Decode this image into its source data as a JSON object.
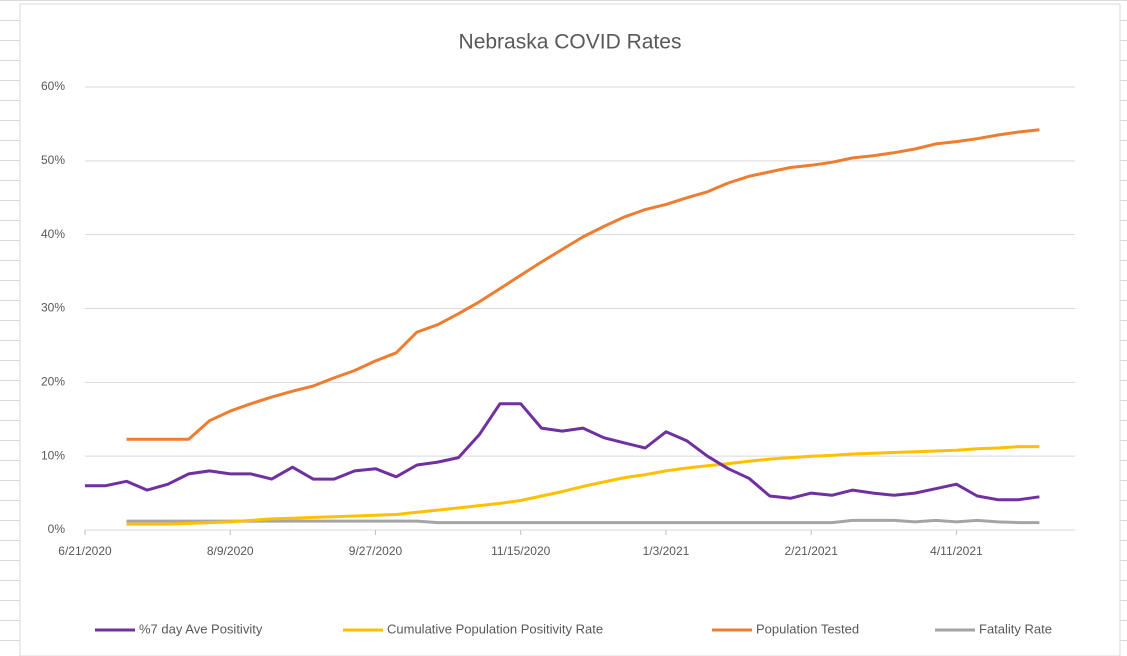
{
  "chart_data": {
    "type": "line",
    "title": "Nebraska COVID Rates",
    "x": [
      "6/21/2020",
      "6/28/2020",
      "7/5/2020",
      "7/12/2020",
      "7/19/2020",
      "7/26/2020",
      "8/2/2020",
      "8/9/2020",
      "8/16/2020",
      "8/23/2020",
      "8/30/2020",
      "9/6/2020",
      "9/13/2020",
      "9/20/2020",
      "9/27/2020",
      "10/4/2020",
      "10/11/2020",
      "10/18/2020",
      "10/25/2020",
      "11/1/2020",
      "11/8/2020",
      "11/15/2020",
      "11/22/2020",
      "11/29/2020",
      "12/6/2020",
      "12/13/2020",
      "12/20/2020",
      "12/27/2020",
      "1/3/2021",
      "1/10/2021",
      "1/17/2021",
      "1/24/2021",
      "1/31/2021",
      "2/7/2021",
      "2/14/2021",
      "2/21/2021",
      "2/28/2021",
      "3/7/2021",
      "3/14/2021",
      "3/21/2021",
      "3/28/2021",
      "4/4/2021",
      "4/11/2021",
      "4/18/2021",
      "4/25/2021",
      "5/2/2021",
      "5/9/2021"
    ],
    "series": [
      {
        "name": "%7 day Ave Positivity",
        "color": "#7030a0",
        "values": [
          6.0,
          6.0,
          6.6,
          5.4,
          6.2,
          7.6,
          8.0,
          7.6,
          7.6,
          6.9,
          8.5,
          6.9,
          6.9,
          8.0,
          8.3,
          7.2,
          8.8,
          9.2,
          9.8,
          12.9,
          17.1,
          17.1,
          13.8,
          13.4,
          13.8,
          12.5,
          11.8,
          11.1,
          13.3,
          12.1,
          10.0,
          8.3,
          7.0,
          4.6,
          4.3,
          5.0,
          4.7,
          5.4,
          5.0,
          4.7,
          5.0,
          5.6,
          6.2,
          4.6,
          4.1,
          4.1,
          4.5
        ]
      },
      {
        "name": "Cumulative Population Positivity Rate",
        "color": "#ffc000",
        "values": [
          null,
          null,
          0.8,
          0.8,
          0.8,
          0.9,
          1.0,
          1.1,
          1.3,
          1.5,
          1.6,
          1.7,
          1.8,
          1.9,
          2.0,
          2.1,
          2.4,
          2.7,
          3.0,
          3.3,
          3.6,
          4.0,
          4.6,
          5.2,
          5.9,
          6.5,
          7.1,
          7.5,
          8.0,
          8.4,
          8.7,
          9.0,
          9.3,
          9.6,
          9.8,
          10.0,
          10.1,
          10.3,
          10.4,
          10.5,
          10.6,
          10.7,
          10.8,
          11.0,
          11.1,
          11.3,
          11.3
        ]
      },
      {
        "name": "Population Tested",
        "color": "#ed7d31",
        "values": [
          null,
          null,
          12.3,
          12.3,
          12.3,
          12.3,
          14.8,
          16.1,
          17.1,
          18.0,
          18.8,
          19.5,
          20.6,
          21.6,
          22.9,
          24.0,
          26.8,
          27.8,
          29.3,
          30.9,
          32.7,
          34.5,
          36.3,
          38.0,
          39.7,
          41.1,
          42.4,
          43.4,
          44.1,
          45.0,
          45.8,
          47.0,
          47.9,
          48.5,
          49.1,
          49.4,
          49.8,
          50.4,
          50.7,
          51.1,
          51.6,
          52.3,
          52.6,
          53.0,
          53.5,
          53.9,
          54.2
        ]
      },
      {
        "name": "Fatality Rate",
        "color": "#a5a5a5",
        "values": [
          null,
          null,
          1.2,
          1.2,
          1.2,
          1.2,
          1.2,
          1.2,
          1.2,
          1.2,
          1.2,
          1.2,
          1.2,
          1.2,
          1.2,
          1.2,
          1.2,
          1.0,
          1.0,
          1.0,
          1.0,
          1.0,
          1.0,
          1.0,
          1.0,
          1.0,
          1.0,
          1.0,
          1.0,
          1.0,
          1.0,
          1.0,
          1.0,
          1.0,
          1.0,
          1.0,
          1.0,
          1.3,
          1.3,
          1.3,
          1.1,
          1.3,
          1.1,
          1.3,
          1.1,
          1.0,
          1.0
        ]
      }
    ],
    "xlim": [
      "6/21/2020",
      "5/21/2021"
    ],
    "xticks": [
      "6/21/2020",
      "8/9/2020",
      "9/27/2020",
      "11/15/2020",
      "1/3/2021",
      "2/21/2021",
      "4/11/2021"
    ],
    "ylim": [
      0,
      60
    ],
    "yticks": [
      {
        "value": 0,
        "label": "0%"
      },
      {
        "value": 10,
        "label": "10%"
      },
      {
        "value": 20,
        "label": "20%"
      },
      {
        "value": 30,
        "label": "30%"
      },
      {
        "value": 40,
        "label": "40%"
      },
      {
        "value": 50,
        "label": "50%"
      },
      {
        "value": 60,
        "label": "60%"
      }
    ],
    "grid": true,
    "legend": "bottom"
  }
}
